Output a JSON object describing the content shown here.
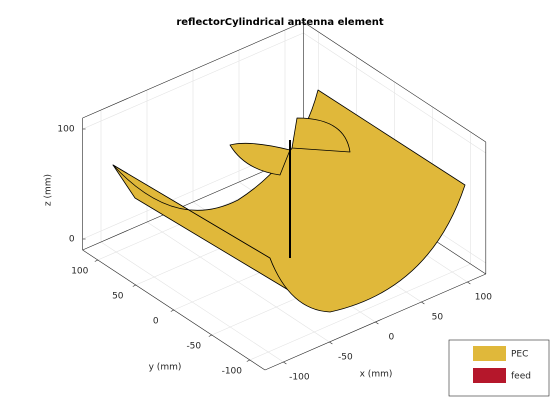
{
  "chart_data": {
    "type": "antenna3d",
    "title": "reflectorCylindrical antenna element",
    "xlabel": "x (mm)",
    "ylabel": "y (mm)",
    "zlabel": "z (mm)",
    "xlim": [
      -120,
      120
    ],
    "ylim": [
      -120,
      120
    ],
    "zlim": [
      -10,
      110
    ],
    "xticks": [
      -100,
      -50,
      0,
      50,
      100
    ],
    "yticks": [
      -100,
      -50,
      0,
      50,
      100
    ],
    "zticks": [
      0,
      100
    ],
    "grid": true,
    "series": [
      {
        "name": "PEC",
        "color": "#e0b83a"
      },
      {
        "name": "feed",
        "color": "#b5172b"
      }
    ]
  }
}
